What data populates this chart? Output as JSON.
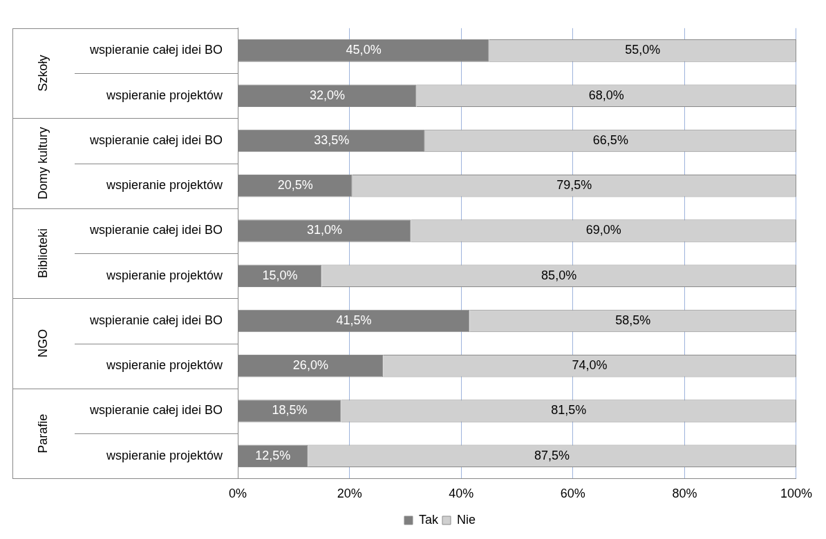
{
  "chart_data": {
    "type": "bar",
    "orientation": "horizontal",
    "stacked": true,
    "categories": [
      "wspieranie całej idei BO",
      "wspieranie projektów",
      "wspieranie całej idei BO",
      "wspieranie projektów",
      "wspieranie całej idei BO",
      "wspieranie projektów",
      "wspieranie całej idei BO",
      "wspieranie projektów",
      "wspieranie całej idei BO",
      "wspieranie projektów"
    ],
    "annotations": [
      "Szkoły",
      "Domy kultury",
      "Biblioteki",
      "NGO",
      "Parafie"
    ],
    "series": [
      {
        "name": "Tak",
        "color": "#7f7f7f",
        "values": [
          45.0,
          32.0,
          33.5,
          20.5,
          31.0,
          15.0,
          41.5,
          26.0,
          18.5,
          12.5
        ]
      },
      {
        "name": "Nie",
        "color": "#d0d0d0",
        "values": [
          55.0,
          68.0,
          66.5,
          79.5,
          69.0,
          85.0,
          58.5,
          74.0,
          81.5,
          87.5
        ]
      }
    ],
    "value_labels": [
      [
        "45,0%",
        "32,0%",
        "33,5%",
        "20,5%",
        "31,0%",
        "15,0%",
        "41,5%",
        "26,0%",
        "18,5%",
        "12,5%"
      ],
      [
        "55,0%",
        "68,0%",
        "66,5%",
        "79,5%",
        "69,0%",
        "85,0%",
        "58,5%",
        "74,0%",
        "81,5%",
        "87,5%"
      ]
    ],
    "xlim": [
      0,
      100
    ],
    "xticks": [
      {
        "value": 0,
        "label": "0%"
      },
      {
        "value": 20,
        "label": "20%"
      },
      {
        "value": 40,
        "label": "40%"
      },
      {
        "value": 60,
        "label": "60%"
      },
      {
        "value": 80,
        "label": "80%"
      },
      {
        "value": 100,
        "label": "100%"
      }
    ],
    "grid": "x",
    "legend": "bottom"
  }
}
